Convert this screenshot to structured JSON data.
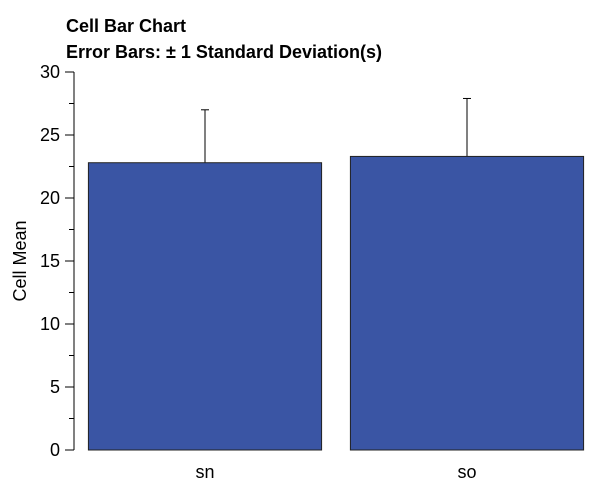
{
  "chart_data": {
    "type": "bar",
    "title": "Cell Bar Chart",
    "subtitle": "Error Bars: ± 1 Standard Deviation(s)",
    "xlabel": "",
    "ylabel": "Cell Mean",
    "categories": [
      "sn",
      "so"
    ],
    "values": [
      22.8,
      23.3
    ],
    "error_bars": [
      4.2,
      4.6
    ],
    "ylim": [
      0,
      30
    ],
    "yticks": [
      0,
      5,
      10,
      15,
      20,
      25,
      30
    ],
    "bar_color": "#3a55a4",
    "grid": false,
    "legend": "none"
  }
}
